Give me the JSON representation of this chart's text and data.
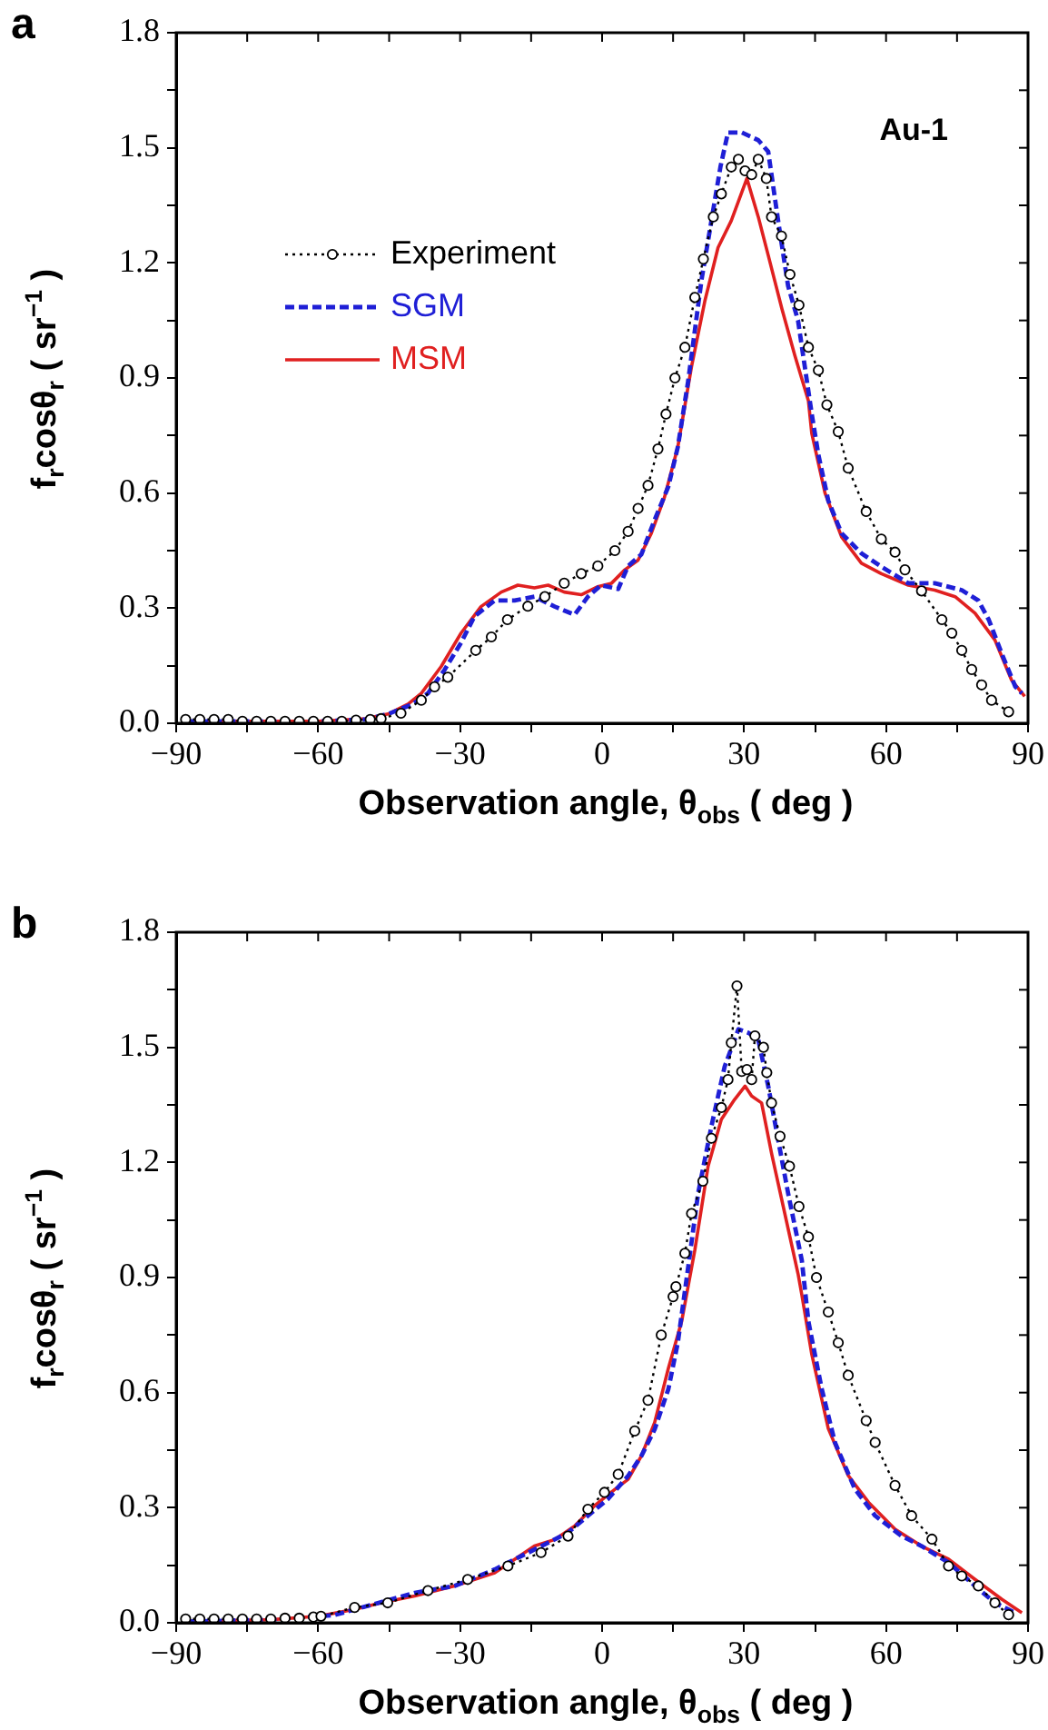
{
  "chart_data": [
    {
      "type": "line",
      "title": "a",
      "xlabel": "Observation angle, θ$_{obs}$ ( deg )",
      "ylabel": "f$_{r}$cosθ$_{r}$ ( sr$^{−1}$ )",
      "annotations": [
        "Au-1"
      ],
      "xlim": [
        -90,
        90
      ],
      "ylim": [
        0,
        1.8
      ],
      "xticks": [
        {
          "value": -90,
          "label": "−90"
        },
        {
          "value": -75,
          "label": null
        },
        {
          "value": -60,
          "label": "−60"
        },
        {
          "value": -45,
          "label": null
        },
        {
          "value": -30,
          "label": "−30"
        },
        {
          "value": -15,
          "label": null
        },
        0,
        {
          "value": 15,
          "label": null
        },
        30,
        {
          "value": 45,
          "label": null
        },
        60,
        {
          "value": 75,
          "label": null
        },
        90
      ],
      "yticks": [
        {
          "value": 0,
          "label": "0.0"
        },
        {
          "value": 0.15,
          "label": null
        },
        0.3,
        {
          "value": 0.45,
          "label": null
        },
        0.6,
        {
          "value": 0.75,
          "label": null
        },
        0.9,
        {
          "value": 1.05,
          "label": null
        },
        1.2,
        {
          "value": 1.35,
          "label": null
        },
        1.5,
        {
          "value": 1.65,
          "label": null
        },
        1.8
      ],
      "grid": false,
      "legend": "top left",
      "series": [
        {
          "name": "Experiment",
          "color": "#000000",
          "marker": "circle",
          "line_style": "dotted",
          "x": [
            -88,
            -85,
            -82,
            -79,
            -76,
            -73,
            -70,
            -67,
            -64,
            -61,
            -58,
            -55,
            -52,
            -49,
            -46.7,
            -42.5,
            -38.2,
            -35.4,
            -32.6,
            -26.7,
            -23.4,
            -20,
            -15.7,
            -12.1,
            -8,
            -4.4,
            -0.9,
            2.7,
            5.5,
            7.6,
            9.7,
            11.8,
            13.5,
            15.4,
            17.5,
            19.6,
            21.4,
            23.5,
            25.2,
            27.3,
            28.8,
            30.2,
            31.6,
            33,
            34.7,
            35.8,
            37.9,
            39.7,
            41.6,
            43.6,
            45.7,
            47.5,
            49.9,
            52,
            55.8,
            59,
            61.9,
            64,
            67.5,
            71.8,
            73.9,
            76,
            78.1,
            80.2,
            82.3,
            85.9
          ],
          "values": [
            0.01,
            0.01,
            0.01,
            0.01,
            0.005,
            0.005,
            0.005,
            0.005,
            0.005,
            0.005,
            0.005,
            0.005,
            0.008,
            0.01,
            0.012,
            0.026,
            0.06,
            0.095,
            0.12,
            0.19,
            0.225,
            0.27,
            0.305,
            0.33,
            0.365,
            0.39,
            0.41,
            0.45,
            0.5,
            0.56,
            0.62,
            0.715,
            0.806,
            0.9,
            0.98,
            1.11,
            1.21,
            1.32,
            1.38,
            1.45,
            1.47,
            1.44,
            1.43,
            1.47,
            1.42,
            1.32,
            1.27,
            1.17,
            1.09,
            0.98,
            0.92,
            0.83,
            0.76,
            0.665,
            0.552,
            0.48,
            0.446,
            0.4,
            0.345,
            0.27,
            0.235,
            0.19,
            0.14,
            0.1,
            0.06,
            0.03
          ]
        },
        {
          "name": "SGM",
          "color": "#1f1fd6",
          "marker": "none",
          "line_style": "dashed",
          "x": [
            -88,
            -70,
            -60,
            -50,
            -45,
            -40,
            -36.8,
            -33.3,
            -29.8,
            -27,
            -22.7,
            -18.5,
            -14.3,
            -10,
            -5.8,
            -3,
            -0.2,
            3.4,
            5.5,
            8.3,
            11.1,
            14,
            16,
            18.2,
            21,
            23.1,
            25,
            26.6,
            29.5,
            33,
            35.1,
            37.2,
            39.3,
            41.4,
            44.3,
            45.7,
            47.8,
            50.6,
            54.8,
            59,
            64.7,
            70.3,
            76,
            79.5,
            81.7,
            84.5,
            87.3,
            88.7
          ],
          "values": [
            0.005,
            0.005,
            0.005,
            0.01,
            0.025,
            0.05,
            0.078,
            0.139,
            0.21,
            0.278,
            0.32,
            0.32,
            0.33,
            0.304,
            0.283,
            0.33,
            0.36,
            0.35,
            0.41,
            0.44,
            0.53,
            0.617,
            0.72,
            0.893,
            1.155,
            1.31,
            1.45,
            1.54,
            1.54,
            1.52,
            1.49,
            1.31,
            1.14,
            1.05,
            0.806,
            0.7,
            0.58,
            0.495,
            0.443,
            0.408,
            0.365,
            0.365,
            0.347,
            0.32,
            0.27,
            0.18,
            0.096,
            0.078
          ]
        },
        {
          "name": "MSM",
          "color": "#e02020",
          "marker": "none",
          "line_style": "solid",
          "x": [
            -88,
            -70,
            -60,
            -50,
            -45,
            -41,
            -38.2,
            -34,
            -29.8,
            -25.6,
            -21.3,
            -17.8,
            -14.3,
            -11.4,
            -8,
            -4.4,
            -0.9,
            2,
            4.8,
            7.6,
            10.4,
            13.2,
            16,
            18.9,
            21.7,
            24.5,
            27.3,
            30.6,
            33,
            35.1,
            38,
            40.7,
            43.6,
            44.3,
            47.1,
            50.6,
            54.8,
            59,
            64.7,
            70.3,
            74.6,
            78.8,
            83,
            86.5,
            89.3
          ],
          "values": [
            0.005,
            0.005,
            0.005,
            0.012,
            0.025,
            0.05,
            0.078,
            0.148,
            0.235,
            0.304,
            0.342,
            0.36,
            0.353,
            0.36,
            0.342,
            0.335,
            0.356,
            0.365,
            0.4,
            0.425,
            0.495,
            0.59,
            0.72,
            0.93,
            1.1,
            1.24,
            1.31,
            1.42,
            1.32,
            1.22,
            1.08,
            0.96,
            0.84,
            0.756,
            0.6,
            0.486,
            0.417,
            0.39,
            0.36,
            0.347,
            0.33,
            0.287,
            0.217,
            0.113,
            0.07
          ]
        }
      ]
    },
    {
      "type": "line",
      "title": "b",
      "xlabel": "Observation angle, θ$_{obs}$ ( deg )",
      "ylabel": "f$_{r}$cosθ$_{r}$ ( sr$^{−1}$ )",
      "xlim": [
        -90,
        90
      ],
      "ylim": [
        0,
        1.8
      ],
      "xticks": [
        {
          "value": -90,
          "label": "−90"
        },
        {
          "value": -75,
          "label": null
        },
        {
          "value": -60,
          "label": "−60"
        },
        {
          "value": -45,
          "label": null
        },
        {
          "value": -30,
          "label": "−30"
        },
        {
          "value": -15,
          "label": null
        },
        0,
        {
          "value": 15,
          "label": null
        },
        30,
        {
          "value": 45,
          "label": null
        },
        60,
        {
          "value": 75,
          "label": null
        },
        90
      ],
      "yticks": [
        {
          "value": 0,
          "label": "0.0"
        },
        {
          "value": 0.15,
          "label": null
        },
        0.3,
        {
          "value": 0.45,
          "label": null
        },
        0.6,
        {
          "value": 0.75,
          "label": null
        },
        0.9,
        {
          "value": 1.05,
          "label": null
        },
        1.2,
        {
          "value": 1.35,
          "label": null
        },
        1.5,
        {
          "value": 1.65,
          "label": null
        },
        1.8
      ],
      "grid": false,
      "series": [
        {
          "color": "#000000",
          "marker": "circle",
          "line_style": "dotted",
          "x": [
            -88,
            -85,
            -82,
            -79,
            -76,
            -73,
            -70,
            -67,
            -64,
            -61,
            -59.4,
            -52.3,
            -45.3,
            -36.8,
            -28.4,
            -19.9,
            -12.9,
            -7.2,
            -3,
            0.5,
            3.4,
            6.9,
            9.7,
            12.5,
            15,
            15.6,
            17.5,
            18.9,
            21.3,
            23.1,
            25.2,
            26.6,
            27.3,
            28.5,
            29.5,
            30.6,
            31.6,
            32.3,
            34.1,
            34.8,
            35.8,
            37.6,
            39.6,
            41.6,
            43.6,
            45.3,
            47.8,
            49.9,
            52,
            55.8,
            57.7,
            61.9,
            65.4,
            69.7,
            73.2,
            76,
            79.5,
            83,
            85.9
          ],
          "values": [
            0.01,
            0.01,
            0.01,
            0.01,
            0.01,
            0.01,
            0.01,
            0.012,
            0.012,
            0.015,
            0.017,
            0.04,
            0.052,
            0.084,
            0.113,
            0.148,
            0.183,
            0.226,
            0.296,
            0.34,
            0.387,
            0.5,
            0.58,
            0.75,
            0.85,
            0.876,
            0.963,
            1.067,
            1.151,
            1.263,
            1.343,
            1.416,
            1.512,
            1.66,
            1.437,
            1.442,
            1.416,
            1.53,
            1.5,
            1.434,
            1.355,
            1.268,
            1.19,
            1.085,
            1.006,
            0.9,
            0.81,
            0.73,
            0.645,
            0.527,
            0.47,
            0.358,
            0.279,
            0.218,
            0.148,
            0.122,
            0.096,
            0.052,
            0.021
          ]
        },
        {
          "color": "#1f1fd6",
          "marker": "none",
          "line_style": "dashed",
          "x": [
            -88,
            -70,
            -56.6,
            -48.1,
            -39.6,
            -31.2,
            -22.7,
            -14.3,
            -7.2,
            -3,
            1.2,
            5.5,
            8.3,
            11.1,
            14,
            16,
            18.2,
            20.3,
            23.1,
            25.9,
            28.8,
            30.9,
            33,
            35.1,
            37.2,
            39.3,
            42.2,
            43.6,
            46.4,
            49.2,
            53.4,
            57.7,
            63.3,
            67.5,
            73.2,
            78.8,
            83,
            87.3
          ],
          "values": [
            0.003,
            0.008,
            0.02,
            0.049,
            0.078,
            0.096,
            0.139,
            0.191,
            0.235,
            0.279,
            0.322,
            0.383,
            0.435,
            0.504,
            0.609,
            0.73,
            0.928,
            1.12,
            1.294,
            1.45,
            1.547,
            1.538,
            1.52,
            1.399,
            1.259,
            1.12,
            0.945,
            0.785,
            0.61,
            0.47,
            0.349,
            0.279,
            0.226,
            0.2,
            0.157,
            0.096,
            0.052,
            0.026
          ]
        },
        {
          "color": "#e02020",
          "marker": "none",
          "line_style": "solid",
          "x": [
            -88,
            -70,
            -60,
            -52.3,
            -46.7,
            -39.6,
            -31.2,
            -22.7,
            -14.3,
            -10,
            -5.8,
            -1.6,
            2.7,
            5.5,
            8.3,
            11.1,
            14,
            16.8,
            19.6,
            22.4,
            25.2,
            28,
            30.2,
            31.6,
            33.7,
            35.8,
            38.6,
            41.4,
            42.2,
            44.3,
            47.8,
            52,
            56.3,
            61.9,
            67.5,
            73.2,
            78.8,
            84.5,
            88.7
          ],
          "values": [
            0.003,
            0.008,
            0.017,
            0.035,
            0.052,
            0.07,
            0.096,
            0.13,
            0.2,
            0.217,
            0.252,
            0.305,
            0.348,
            0.374,
            0.435,
            0.522,
            0.663,
            0.785,
            0.972,
            1.19,
            1.312,
            1.364,
            1.399,
            1.373,
            1.355,
            1.224,
            1.067,
            0.91,
            0.855,
            0.7,
            0.506,
            0.384,
            0.314,
            0.244,
            0.2,
            0.166,
            0.113,
            0.061,
            0.026
          ]
        }
      ]
    }
  ]
}
